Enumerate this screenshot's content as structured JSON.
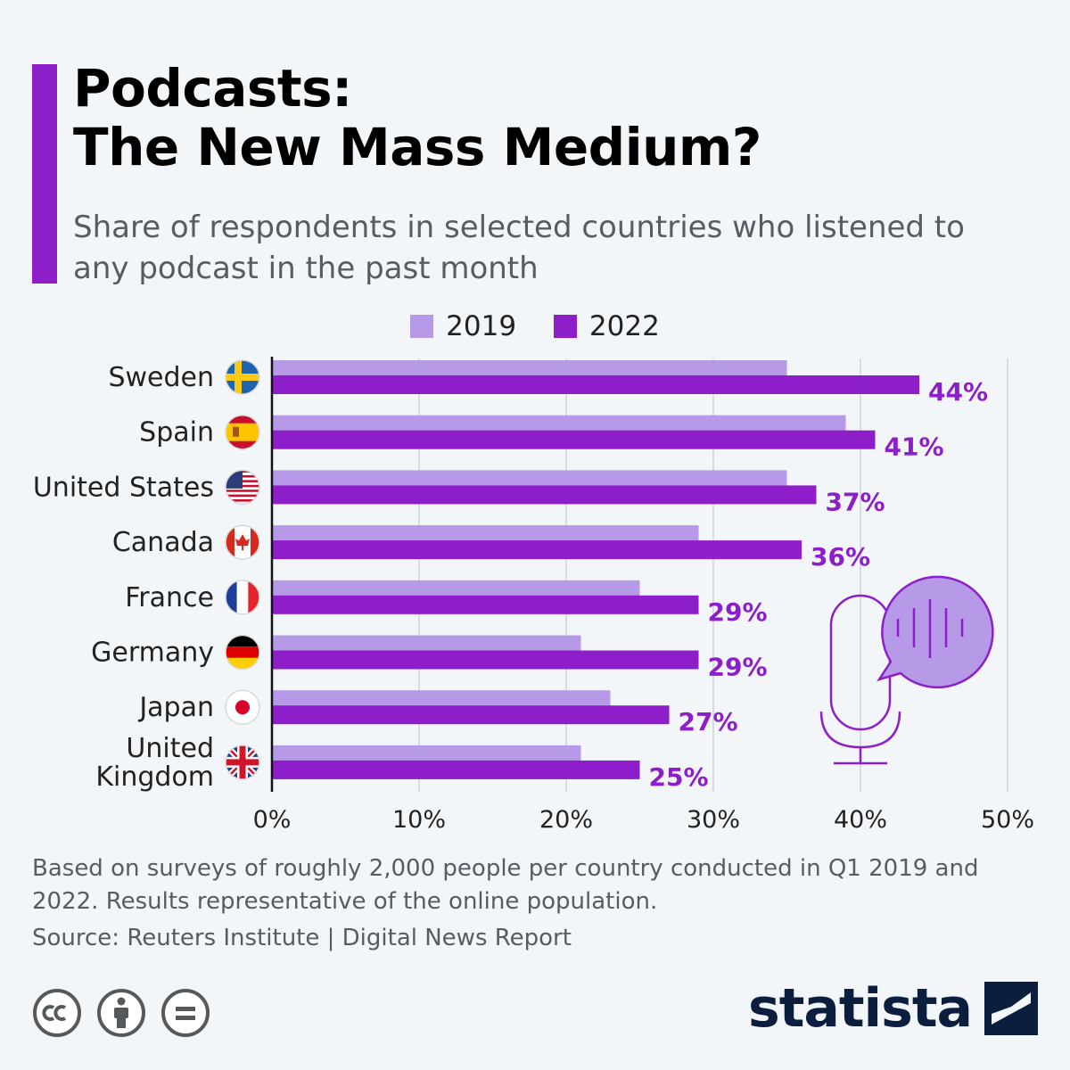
{
  "header": {
    "title": "Podcasts:\nThe New Mass Medium?",
    "subtitle": "Share of respondents in selected countries who listened to any podcast in the past month"
  },
  "colors": {
    "accent": "#8e1ec9",
    "series_2019": "#b69ae8",
    "series_2022": "#8e1ec9",
    "brand": "#0b1e3d"
  },
  "chart_data": {
    "type": "bar",
    "orientation": "horizontal",
    "categories": [
      "Sweden",
      "Spain",
      "United States",
      "Canada",
      "France",
      "Germany",
      "Japan",
      "United Kingdom"
    ],
    "series": [
      {
        "name": "2019",
        "values": [
          35,
          39,
          35,
          29,
          25,
          21,
          23,
          21
        ]
      },
      {
        "name": "2022",
        "values": [
          44,
          41,
          37,
          36,
          29,
          29,
          27,
          25
        ]
      }
    ],
    "data_labels": [
      "44%",
      "41%",
      "37%",
      "36%",
      "29%",
      "29%",
      "27%",
      "25%"
    ],
    "x_ticks": [
      "0%",
      "10%",
      "20%",
      "30%",
      "40%",
      "50%"
    ],
    "xlim": [
      0,
      50
    ],
    "grid": true,
    "legend": "top-center",
    "flags": [
      "flag-sweden-icon",
      "flag-spain-icon",
      "flag-united-states-icon",
      "flag-canada-icon",
      "flag-france-icon",
      "flag-germany-icon",
      "flag-japan-icon",
      "flag-united-kingdom-icon"
    ],
    "decoration": "microphone-speech-bubble-icon"
  },
  "footer": {
    "note": "Based on surveys of roughly 2,000 people per country conducted in Q1 2019 and 2022. Results representative of the online population.",
    "source": "Source: Reuters Institute | Digital News Report",
    "brand": "statista",
    "license_icons": [
      "cc-icon",
      "attribution-icon",
      "no-derivatives-icon"
    ]
  }
}
